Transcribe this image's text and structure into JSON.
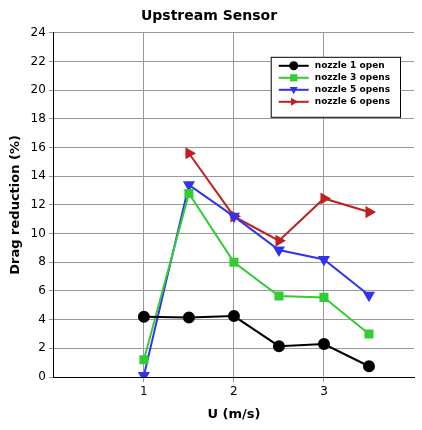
{
  "chart_data": {
    "type": "line",
    "title": "Upstream Sensor",
    "x_label": "U (m/s)",
    "y_label": "Drag reduction (%)",
    "xlim": [
      0,
      4
    ],
    "xticks": [
      1,
      2,
      3
    ],
    "ylim": [
      0,
      24
    ],
    "yticks": [
      0,
      2,
      4,
      6,
      8,
      10,
      12,
      14,
      16,
      18,
      20,
      22,
      24
    ],
    "grid": true,
    "legend": "top-right",
    "series": [
      {
        "name": "nozzle 1 open",
        "color": "#000000",
        "marker": "circle",
        "x": [
          1,
          1.5,
          2,
          2.5,
          3,
          3.5
        ],
        "values": [
          4.2,
          4.15,
          4.25,
          2.15,
          2.3,
          0.75
        ]
      },
      {
        "name": "nozzle 3 opens",
        "color": "#33cc33",
        "marker": "square",
        "x": [
          1,
          1.5,
          2,
          2.5,
          3,
          3.5
        ],
        "values": [
          1.2,
          12.8,
          8.0,
          5.65,
          5.55,
          3.0
        ]
      },
      {
        "name": "nozzle 5 opens",
        "color": "#3333ee",
        "marker": "triangle-down",
        "x": [
          1,
          1.5,
          2,
          2.5,
          3,
          3.5
        ],
        "values": [
          0.1,
          13.4,
          11.2,
          8.85,
          8.2,
          5.7
        ]
      },
      {
        "name": "nozzle 6 opens",
        "color": "#c02020",
        "marker": "triangle-right",
        "x": [
          1.5,
          2,
          2.5,
          3,
          3.5
        ],
        "values": [
          15.6,
          11.2,
          9.5,
          12.45,
          11.5
        ]
      }
    ]
  }
}
